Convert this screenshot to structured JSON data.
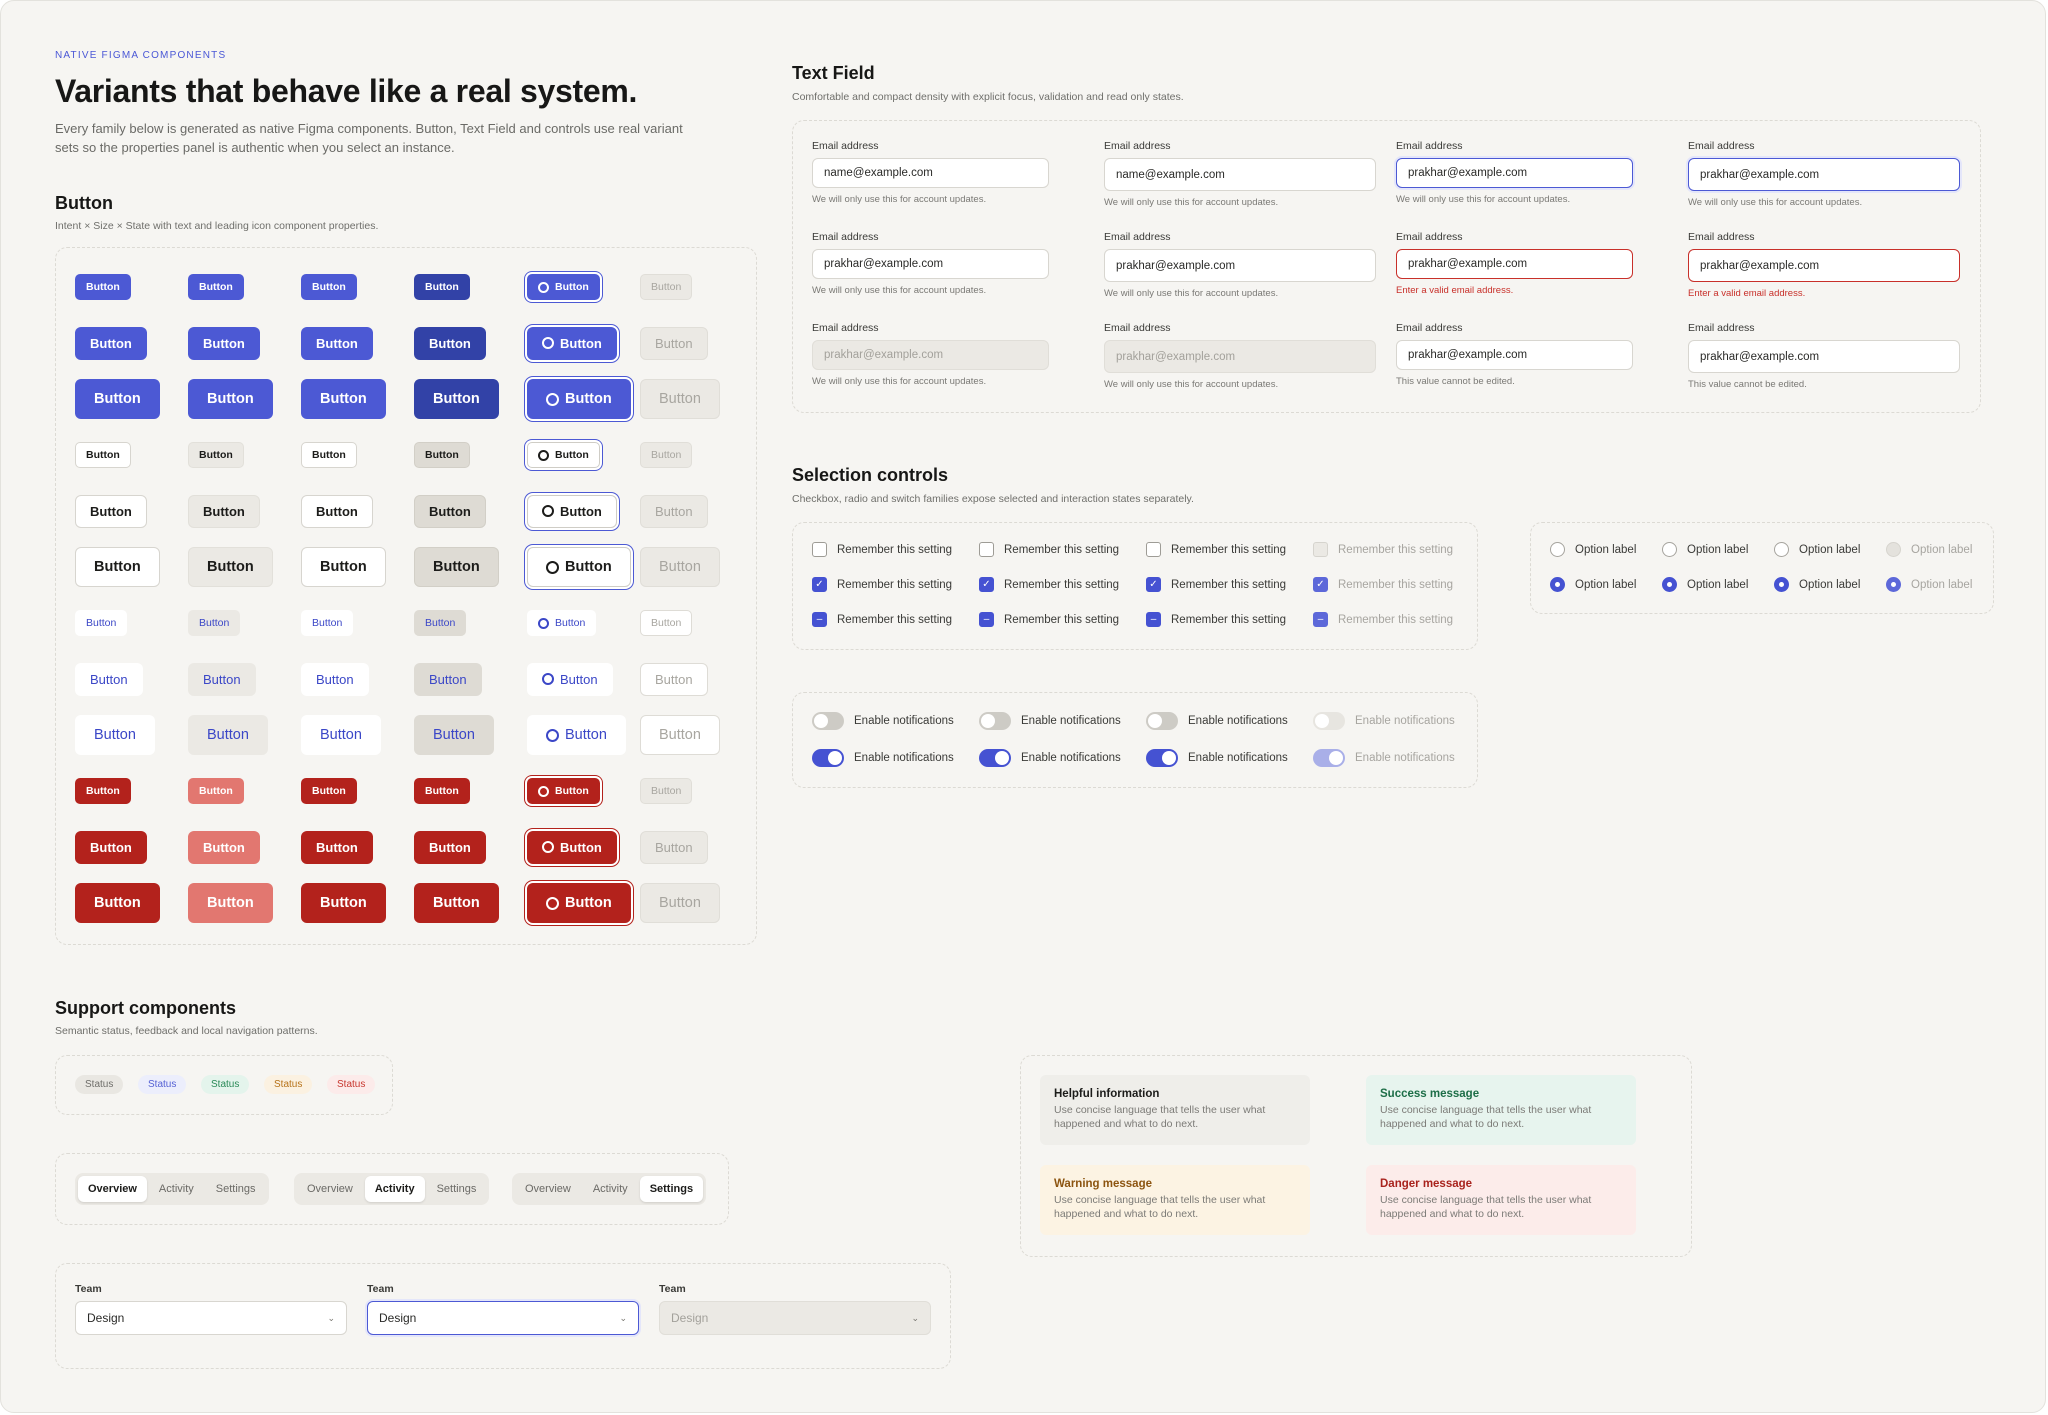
{
  "header": {
    "eyebrow": "NATIVE FIGMA COMPONENTS",
    "title": "Variants that behave like a real system.",
    "lead": "Every family below is generated as native Figma components. Button, Text Field and controls use real variant sets so the properties panel is authentic when you select an instance."
  },
  "button_section": {
    "title": "Button",
    "description": "Intent × Size × State with text and leading icon component properties.",
    "label": "Button",
    "icon": "circle-icon"
  },
  "text_field_section": {
    "title": "Text Field",
    "description": "Comfortable and compact density with explicit focus, validation and read only states.",
    "label": "Email address",
    "placeholder_value": "name@example.com",
    "filled_value": "prakhar@example.com",
    "help_text": "We will only use this for account updates.",
    "error_text": "Enter a valid email address.",
    "readonly_text": "This value cannot be edited."
  },
  "selection_section": {
    "title": "Selection controls",
    "description": "Checkbox, radio and switch families expose selected and interaction states separately.",
    "checkbox_label": "Remember this setting",
    "radio_label": "Option label",
    "switch_label": "Enable notifications"
  },
  "support_section": {
    "title": "Support components",
    "description": "Semantic status, feedback and local navigation patterns.",
    "badge_label": "Status",
    "badges": [
      {
        "bg": "#e9e7e2",
        "fg": "#6f6e6a"
      },
      {
        "bg": "#eceefc",
        "fg": "#5561d4"
      },
      {
        "bg": "#e4f4ec",
        "fg": "#2a8a57"
      },
      {
        "bg": "#fbf1e1",
        "fg": "#b7731a"
      },
      {
        "bg": "#fcebea",
        "fg": "#c8372f"
      }
    ],
    "tabs": [
      "Overview",
      "Activity",
      "Settings"
    ],
    "select_label": "Team",
    "select_value": "Design"
  },
  "alerts": [
    {
      "title": "Helpful information",
      "body": "Use concise language that tells the user what happened and what to do next.",
      "bg": "#efeeea",
      "title_color": "#1c1c1a"
    },
    {
      "title": "Success message",
      "body": "Use concise language that tells the user what happened and what to do next.",
      "bg": "#e7f4ee",
      "title_color": "#1d6e47"
    },
    {
      "title": "Warning message",
      "body": "Use concise language that tells the user what happened and what to do next.",
      "bg": "#fcf3e3",
      "title_color": "#8c5410"
    },
    {
      "title": "Danger message",
      "body": "Use concise language that tells the user what happened and what to do next.",
      "bg": "#fcecea",
      "title_color": "#a8231d"
    }
  ],
  "colors": {
    "accent": "#4c59d4",
    "danger": "#b3221c",
    "background": "#f6f5f2"
  }
}
